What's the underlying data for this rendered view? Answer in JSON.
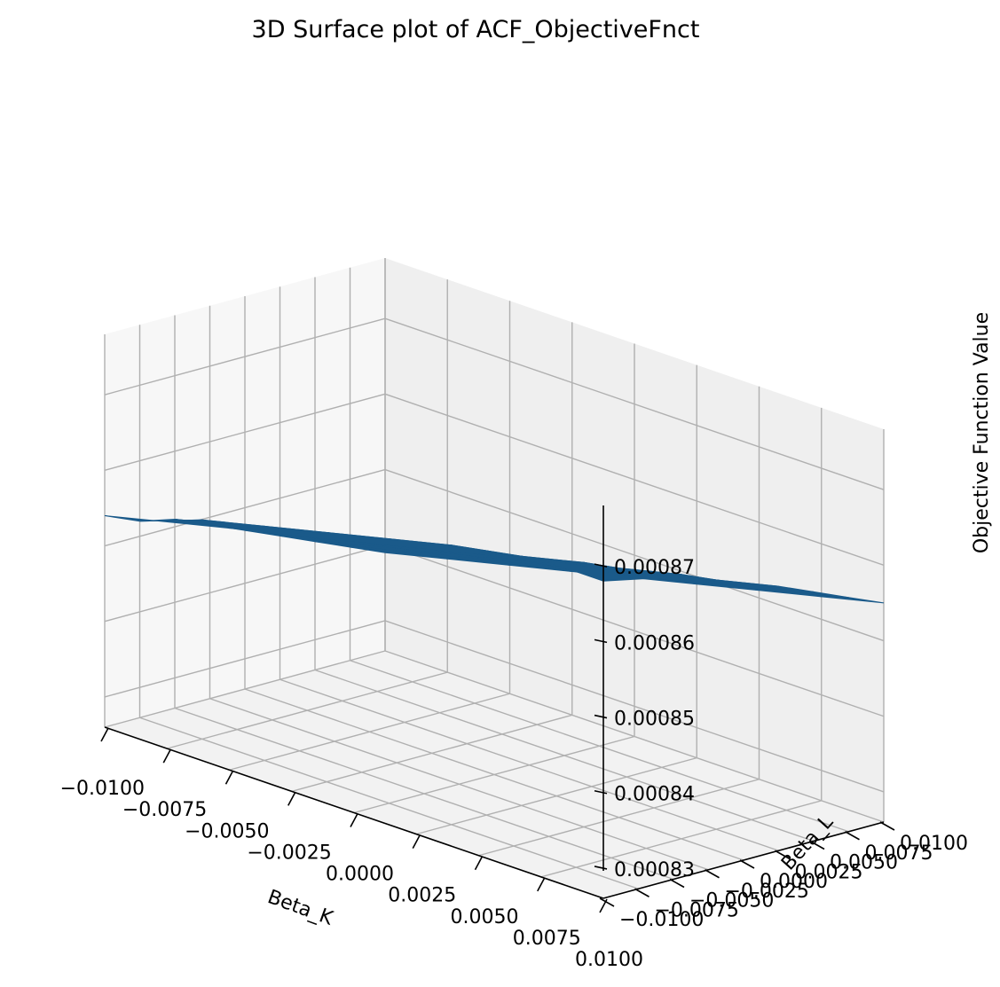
{
  "chart_data": {
    "type": "surface",
    "title": "3D Surface plot of ACF_ObjectiveFnct",
    "xlabel": "Beta_K",
    "ylabel": "Beta_L",
    "zlabel": "Objective Function Value",
    "xlim": [
      -0.01,
      0.01
    ],
    "ylim": [
      -0.01,
      0.01
    ],
    "zlim": [
      0.000826,
      0.000878
    ],
    "x_ticks": [
      "−0.0100",
      "−0.0075",
      "−0.0050",
      "−0.0025",
      "0.0000",
      "0.0025",
      "0.0050",
      "0.0075",
      "0.0100"
    ],
    "y_ticks": [
      "−0.0100",
      "−0.0075",
      "−0.0050",
      "−0.0025",
      "0.0000",
      "0.0025",
      "0.0050",
      "0.0075",
      "0.0100"
    ],
    "z_ticks": [
      "0.00083",
      "0.00084",
      "0.00085",
      "0.00086",
      "0.00087"
    ],
    "x_tick_values": [
      -0.01,
      -0.0075,
      -0.005,
      -0.0025,
      0,
      0.0025,
      0.005,
      0.0075,
      0.01
    ],
    "y_tick_values": [
      -0.01,
      -0.0075,
      -0.005,
      -0.0025,
      0,
      0.0025,
      0.005,
      0.0075,
      0.01
    ],
    "z_tick_values": [
      0.00083,
      0.00084,
      0.00085,
      0.00086,
      0.00087
    ],
    "grid": true,
    "surface_color": "#1a5a8a",
    "surface": {
      "x": [
        -0.01,
        -0.0075,
        -0.005,
        -0.0025,
        0.0,
        0.0025,
        0.005,
        0.0075,
        0.01
      ],
      "y": [
        -0.01,
        -0.0075,
        -0.005,
        -0.0025,
        0.0,
        0.0025,
        0.005,
        0.0075,
        0.01
      ],
      "z": [
        [
          0.000854,
          0.000856,
          0.000858,
          0.00086,
          0.000862,
          0.000864,
          0.000866,
          0.000868,
          0.000868
        ],
        [
          0.000852,
          0.000855,
          0.000857,
          0.000859,
          0.000861,
          0.000863,
          0.000864,
          0.000866,
          0.000867
        ],
        [
          0.000851,
          0.000853,
          0.000855,
          0.000857,
          0.000859,
          0.000861,
          0.000862,
          0.000864,
          0.000866
        ],
        [
          0.000849,
          0.000851,
          0.000853,
          0.000855,
          0.000857,
          0.000859,
          0.000861,
          0.000862,
          0.000864
        ],
        [
          0.000847,
          0.000849,
          0.000851,
          0.000853,
          0.000855,
          0.000857,
          0.000859,
          0.000861,
          0.000862
        ],
        [
          0.000845,
          0.000847,
          0.000849,
          0.000851,
          0.000853,
          0.000855,
          0.000857,
          0.000859,
          0.000861
        ],
        [
          0.000843,
          0.000845,
          0.000847,
          0.000849,
          0.000851,
          0.000853,
          0.000855,
          0.000857,
          0.000859
        ],
        [
          0.000841,
          0.000843,
          0.000845,
          0.000847,
          0.000849,
          0.000851,
          0.000853,
          0.000855,
          0.000857
        ],
        [
          0.000839,
          0.000841,
          0.000843,
          0.000845,
          0.000847,
          0.000849,
          0.000851,
          0.000853,
          0.000855
        ]
      ]
    }
  }
}
